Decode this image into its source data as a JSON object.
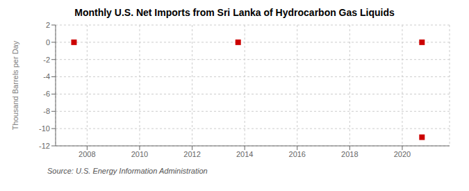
{
  "chart_data": {
    "type": "scatter",
    "title": "Monthly U.S. Net Imports from Sri Lanka of Hydrocarbon Gas Liquids",
    "ylabel": "Thousand Barrels per Day",
    "annotation": "Source: U.S. Energy Information Administration",
    "x": [
      2007.5,
      2013.75,
      2020.75,
      2020.75
    ],
    "values": [
      0,
      0,
      0,
      -11
    ],
    "xlim": [
      2006.8,
      2021.8
    ],
    "xticks": [
      2008,
      2010,
      2012,
      2014,
      2016,
      2018,
      2020
    ],
    "ylim": [
      -12,
      2
    ],
    "yticks": [
      2,
      0,
      -2,
      -4,
      -6,
      -8,
      -10,
      -12
    ],
    "grid": true,
    "color": "#cc0000",
    "marker": "square"
  }
}
